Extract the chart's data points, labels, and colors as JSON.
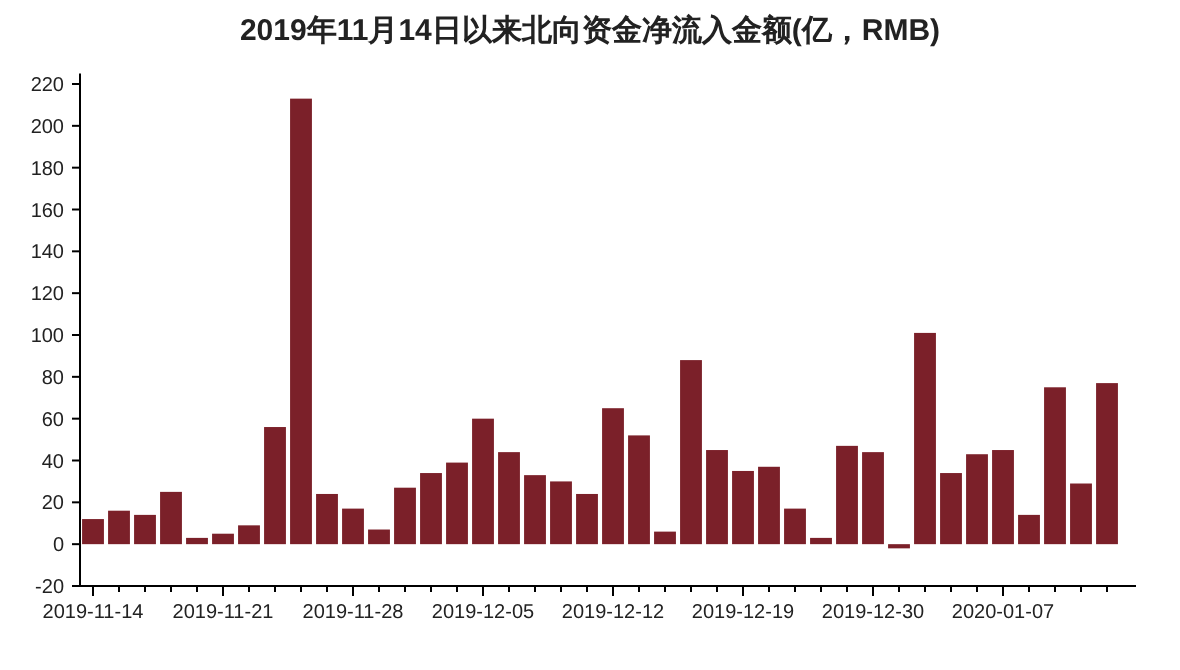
{
  "chart_data": {
    "type": "bar",
    "title": "2019年11月14日以来北向资金净流入金额(亿，RMB)",
    "categories": [
      "2019-11-14",
      null,
      null,
      null,
      null,
      "2019-11-21",
      null,
      null,
      null,
      null,
      "2019-11-28",
      null,
      null,
      null,
      null,
      "2019-12-05",
      null,
      null,
      null,
      null,
      "2019-12-12",
      null,
      null,
      null,
      null,
      "2019-12-19",
      null,
      null,
      null,
      null,
      "2019-12-30",
      null,
      null,
      null,
      null,
      "2020-01-07",
      null,
      null,
      null,
      null
    ],
    "values": [
      12,
      16,
      14,
      25,
      3,
      5,
      9,
      56,
      213,
      24,
      17,
      7,
      27,
      34,
      39,
      60,
      44,
      33,
      30,
      24,
      65,
      52,
      6,
      88,
      45,
      35,
      37,
      17,
      3,
      47,
      44,
      -2,
      101,
      34,
      43,
      45,
      14,
      75,
      29,
      77
    ],
    "color": "#7b2029",
    "ylim": [
      -20,
      225
    ],
    "yticks": [
      -20,
      0,
      20,
      40,
      60,
      80,
      100,
      120,
      140,
      160,
      180,
      200,
      220
    ],
    "grid": false
  }
}
